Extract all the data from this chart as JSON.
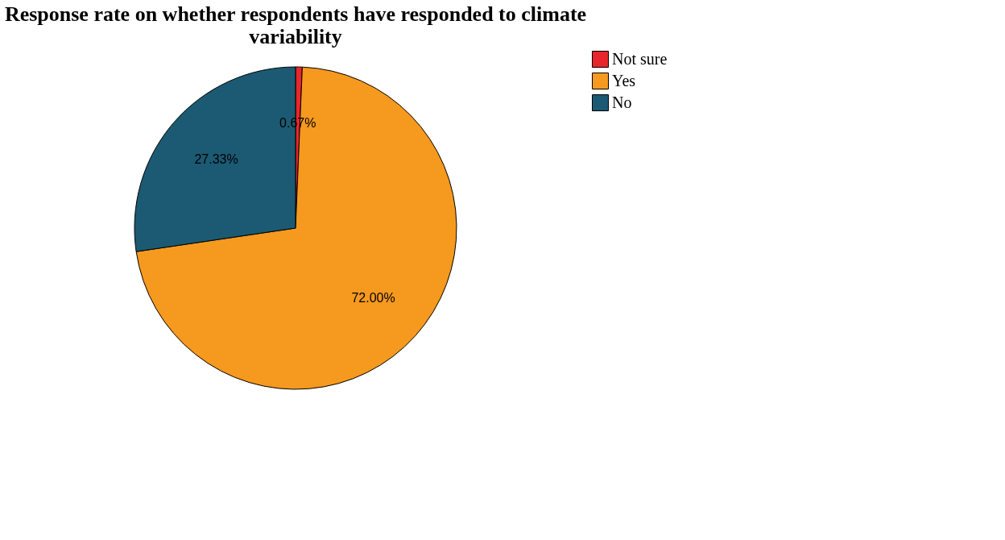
{
  "chart_data": {
    "type": "pie",
    "title": [
      "Response rate on whether respondents have responded to climate",
      "variability"
    ],
    "categories": [
      "Not sure",
      "Yes",
      "No"
    ],
    "values": [
      0.67,
      72.0,
      27.33
    ],
    "colors": [
      "#e8262c",
      "#f6991f",
      "#1b5a72"
    ],
    "value_labels": [
      "0.67%",
      "72.00%",
      "27.33%"
    ],
    "legend": "right"
  }
}
